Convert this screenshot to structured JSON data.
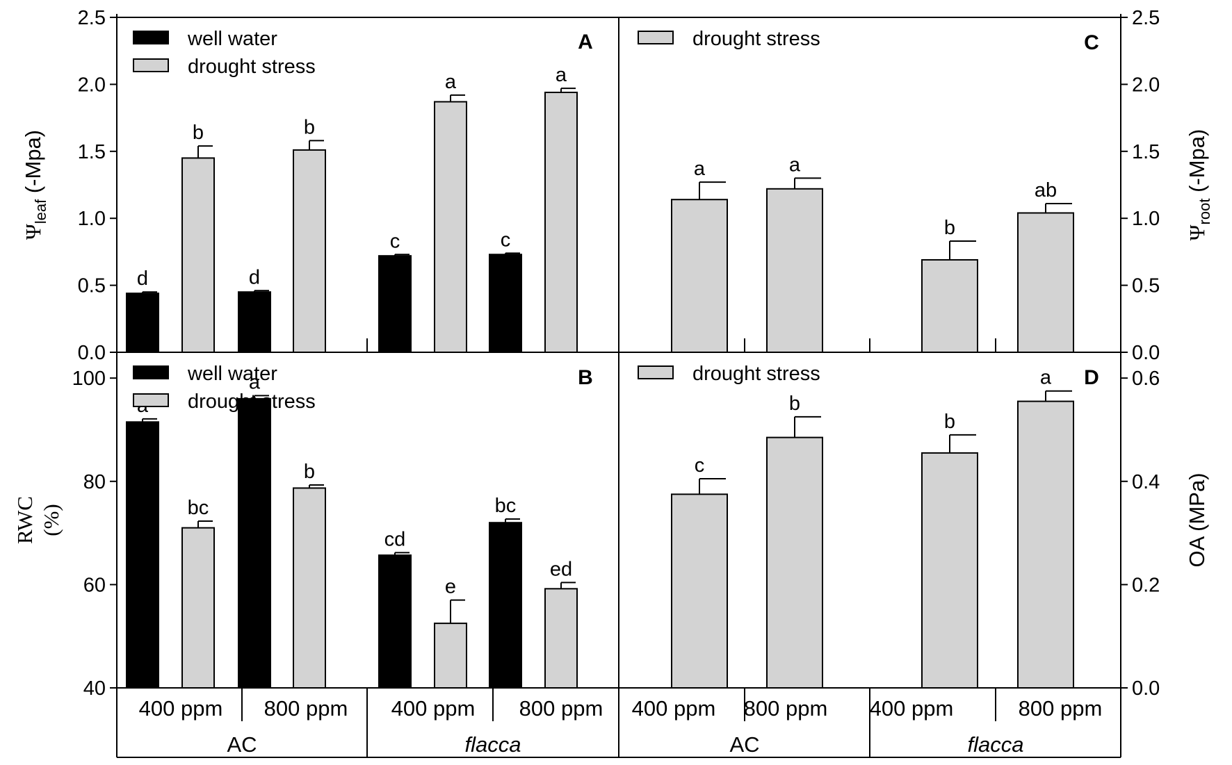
{
  "figure": {
    "colors": {
      "well": "#000000",
      "drought": "#d3d3d3",
      "stroke": "#000000"
    },
    "groups": [
      "AC",
      "flacca"
    ],
    "co2_levels": [
      "400 ppm",
      "800 ppm"
    ]
  },
  "chart_data": [
    {
      "id": "A",
      "panel_label": "A",
      "type": "bar",
      "title": "",
      "ylabel_symbol": "Ψ",
      "ylabel_sub": "leaf",
      "ylabel_unit": "(-Mpa)",
      "ylim": [
        0,
        2.5
      ],
      "yticks": [
        "0.0",
        "0.5",
        "1.0",
        "1.5",
        "2.0",
        "2.5"
      ],
      "categories": [
        "AC 400 ppm",
        "AC 800 ppm",
        "flacca 400 ppm",
        "flacca 800 ppm"
      ],
      "legend": [
        "well water",
        "drought stress"
      ],
      "series": [
        {
          "name": "well water",
          "values": [
            0.44,
            0.45,
            0.72,
            0.73
          ],
          "errors": [
            0.01,
            0.01,
            0.01,
            0.01
          ],
          "letters": [
            "d",
            "d",
            "c",
            "c"
          ]
        },
        {
          "name": "drought stress",
          "values": [
            1.45,
            1.51,
            1.87,
            1.94
          ],
          "errors": [
            0.09,
            0.07,
            0.05,
            0.03
          ],
          "letters": [
            "b",
            "b",
            "a",
            "a"
          ]
        }
      ]
    },
    {
      "id": "B",
      "panel_label": "B",
      "type": "bar",
      "title": "",
      "ylabel_line1": "RWC",
      "ylabel_line2": "(%)",
      "ylim": [
        40,
        105
      ],
      "yticks": [
        "40",
        "60",
        "80",
        "100"
      ],
      "categories": [
        "AC 400 ppm",
        "AC 800 ppm",
        "flacca 400 ppm",
        "flacca 800 ppm"
      ],
      "legend": [
        "well water",
        "drought stress"
      ],
      "series": [
        {
          "name": "well water",
          "values": [
            91.5,
            96.0,
            65.7,
            72.0
          ],
          "errors": [
            0.6,
            0.6,
            0.5,
            0.7
          ],
          "letters": [
            "a",
            "a",
            "cd",
            "bc"
          ]
        },
        {
          "name": "drought stress",
          "values": [
            71.0,
            78.7,
            52.5,
            59.2
          ],
          "errors": [
            1.3,
            0.6,
            4.5,
            1.2
          ],
          "letters": [
            "bc",
            "b",
            "e",
            "ed"
          ]
        }
      ]
    },
    {
      "id": "C",
      "panel_label": "C",
      "type": "bar",
      "title": "",
      "ylabel_symbol": "Ψ",
      "ylabel_sub": "root",
      "ylabel_unit": "(-Mpa)",
      "ylim": [
        0,
        2.5
      ],
      "yticks": [
        "0.0",
        "0.5",
        "1.0",
        "1.5",
        "2.0",
        "2.5"
      ],
      "categories": [
        "AC 400 ppm",
        "AC 800 ppm",
        "flacca 400 ppm",
        "flacca 800 ppm"
      ],
      "legend": [
        "drought stress"
      ],
      "series": [
        {
          "name": "drought stress",
          "values": [
            1.14,
            1.22,
            0.69,
            1.04
          ],
          "errors": [
            0.13,
            0.08,
            0.14,
            0.07
          ],
          "letters": [
            "a",
            "a",
            "b",
            "ab"
          ]
        }
      ]
    },
    {
      "id": "D",
      "panel_label": "D",
      "type": "bar",
      "title": "",
      "ylabel": "OA (MPa)",
      "ylim": [
        0,
        0.65
      ],
      "yticks": [
        "0.0",
        "0.2",
        "0.4",
        "0.6"
      ],
      "categories": [
        "AC 400 ppm",
        "AC 800 ppm",
        "flacca 400 ppm",
        "flacca 800 ppm"
      ],
      "legend": [
        "drought stress"
      ],
      "series": [
        {
          "name": "drought stress",
          "values": [
            0.375,
            0.485,
            0.455,
            0.555
          ],
          "errors": [
            0.03,
            0.04,
            0.035,
            0.02
          ],
          "letters": [
            "c",
            "b",
            "b",
            "a"
          ]
        }
      ]
    }
  ]
}
